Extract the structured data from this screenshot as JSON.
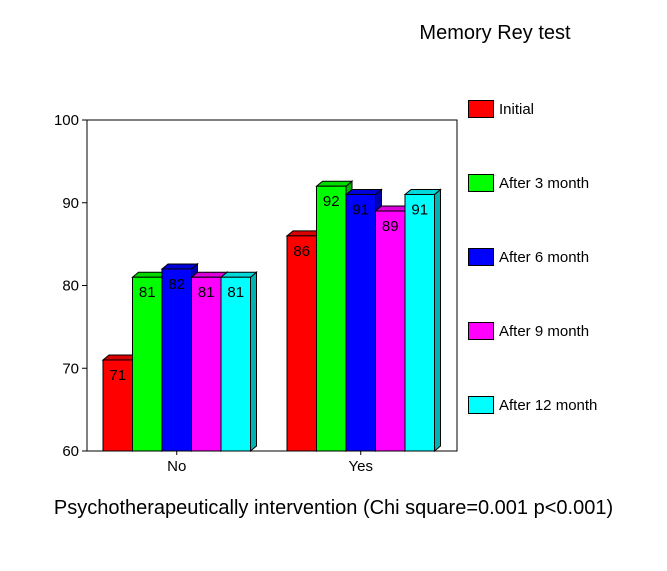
{
  "chart_data": {
    "type": "bar",
    "title": "Memory Rey test",
    "xlabel": "Psychotherapeutically intervention (Chi square=0.001 p<0.001)",
    "ylabel": "",
    "ylim": [
      60,
      100
    ],
    "yticks": [
      "60",
      "70",
      "80",
      "90",
      "100"
    ],
    "categories": [
      "No",
      "Yes"
    ],
    "series": [
      {
        "name": "Initial",
        "color": "#ff0000",
        "values": [
          71,
          86
        ]
      },
      {
        "name": "After 3 month",
        "color": "#00ff00",
        "values": [
          81,
          92
        ]
      },
      {
        "name": "After 6 month",
        "color": "#0000ff",
        "values": [
          82,
          91
        ]
      },
      {
        "name": "After 9 month",
        "color": "#ff00ff",
        "values": [
          81,
          89
        ]
      },
      {
        "name": "After 12 month",
        "color": "#00ffff",
        "values": [
          81,
          91
        ]
      }
    ],
    "grid": false,
    "legend_position": "right",
    "style": "3d-bars"
  }
}
